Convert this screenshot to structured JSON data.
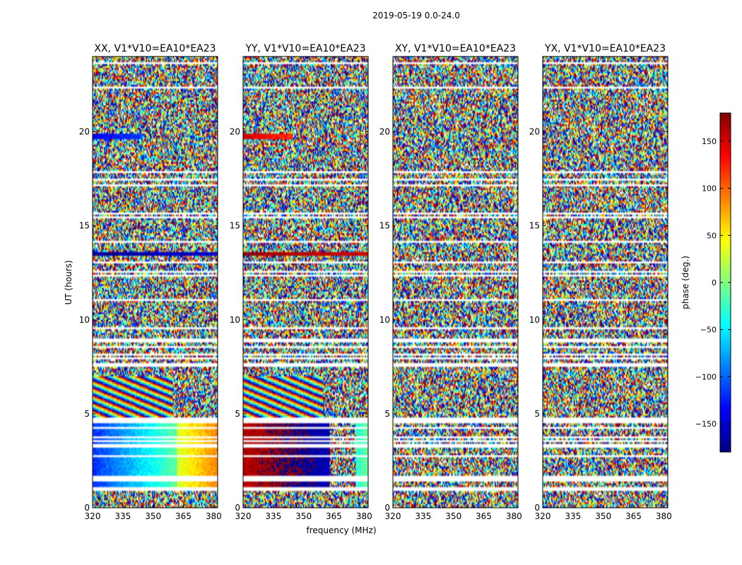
{
  "figure": {
    "suptitle": "2019-05-19 0.0-24.0",
    "xlabel": "frequency (MHz)",
    "ylabel": "UT (hours)",
    "colorbar_label": "phase (deg.)",
    "colorbar_ticks": [
      150,
      100,
      50,
      0,
      -50,
      -100,
      -150
    ],
    "colorbar_range": [
      -180,
      180
    ],
    "colormap": "jet",
    "colormap_stops": [
      "#00007f",
      "#0000ff",
      "#007fff",
      "#00ffff",
      "#7fff7f",
      "#ffff00",
      "#ff7f00",
      "#ff0000",
      "#7f0000"
    ]
  },
  "chart_data": {
    "type": "heatmap",
    "x_range": [
      320,
      382
    ],
    "y_range": [
      0,
      24
    ],
    "x_ticks": [
      320,
      335,
      350,
      365,
      380
    ],
    "y_ticks": [
      0,
      5,
      10,
      15,
      20
    ],
    "z_label": "phase (deg.)",
    "z_range": [
      -180,
      180
    ],
    "panels": [
      {
        "title": "XX, V1*V10=EA10*EA23",
        "pol": "XX"
      },
      {
        "title": "YY, V1*V10=EA10*EA23",
        "pol": "YY"
      },
      {
        "title": "XY, V1*V10=EA10*EA23",
        "pol": "XY"
      },
      {
        "title": "YX, V1*V10=EA10*EA23",
        "pol": "YX"
      }
    ],
    "flagged_rows_hours": [
      0.95,
      1.05,
      1.45,
      1.6,
      2.75,
      3.3,
      3.55,
      3.7,
      4.25,
      4.6,
      4.75,
      7.1,
      7.6,
      8.0,
      8.2,
      8.5,
      8.9,
      9.6,
      10.9,
      11.1,
      12.3,
      12.5,
      13.1,
      13.3,
      14.2,
      14.8,
      15.4,
      15.7,
      16.2,
      16.8,
      17.1,
      17.5,
      17.9,
      18.2,
      18.7,
      19.2,
      21.2,
      21.7,
      22.0,
      22.4,
      22.8,
      23.6
    ],
    "coherent_blocks": [
      {
        "panel": 0,
        "hours": [
          1.05,
          4.6
        ],
        "freq_MHz": [
          320,
          362
        ],
        "phase_start_deg": -120,
        "phase_end_deg": -10
      },
      {
        "panel": 0,
        "hours": [
          1.05,
          4.6
        ],
        "freq_MHz": [
          362,
          382
        ],
        "phase_start_deg": 30,
        "phase_end_deg": 90
      },
      {
        "panel": 0,
        "hours": [
          19.6,
          19.9
        ],
        "freq_MHz": [
          320,
          345
        ],
        "phase_start_deg": -140,
        "phase_end_deg": -110
      },
      {
        "panel": 0,
        "hours": [
          13.4,
          13.6
        ],
        "freq_MHz": [
          320,
          382
        ],
        "phase_start_deg": -170,
        "phase_end_deg": -150
      },
      {
        "panel": 1,
        "hours": [
          1.05,
          4.6
        ],
        "freq_MHz": [
          320,
          363
        ],
        "phase_start_deg": 160,
        "phase_end_deg": -160
      },
      {
        "panel": 1,
        "hours": [
          1.05,
          4.6
        ],
        "freq_MHz": [
          376,
          382
        ],
        "phase_start_deg": -30,
        "phase_end_deg": -10
      },
      {
        "panel": 1,
        "hours": [
          19.6,
          19.9
        ],
        "freq_MHz": [
          320,
          345
        ],
        "phase_start_deg": 150,
        "phase_end_deg": 120
      },
      {
        "panel": 1,
        "hours": [
          13.4,
          13.6
        ],
        "freq_MHz": [
          320,
          382
        ],
        "phase_start_deg": 170,
        "phase_end_deg": 150
      }
    ],
    "striped_blocks": [
      {
        "panel": 0,
        "hours": [
          4.8,
          7.0
        ],
        "freq_MHz": [
          320,
          360
        ]
      },
      {
        "panel": 1,
        "hours": [
          4.8,
          7.0
        ],
        "freq_MHz": [
          320,
          360
        ]
      }
    ]
  }
}
